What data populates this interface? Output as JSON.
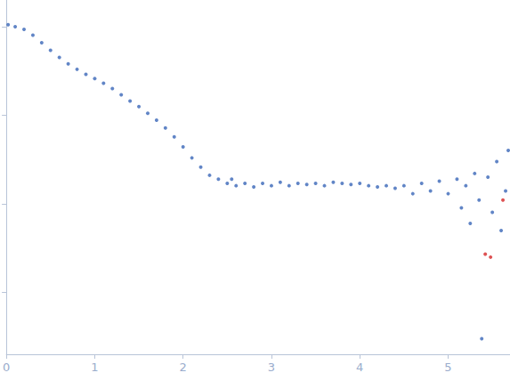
{
  "chart_data": {
    "type": "scatter",
    "log": "y",
    "grid": false,
    "tick_labels": "x",
    "marker": "circle",
    "xlim": [
      0,
      5.7
    ],
    "xticks": [
      0,
      1,
      2,
      3,
      4,
      5
    ],
    "ylim": [
      0.0002,
      2
    ],
    "yticks": [
      0.001,
      0.01,
      0.1,
      1
    ],
    "series": [
      {
        "color": "#3a66b8",
        "x": [
          0.02,
          0.1,
          0.2,
          0.3,
          0.4,
          0.5,
          0.6,
          0.7,
          0.8,
          0.9,
          1.0,
          1.1,
          1.2,
          1.3,
          1.4,
          1.5,
          1.6,
          1.7,
          1.8,
          1.9,
          2.0,
          2.1,
          2.2,
          2.3,
          2.4,
          2.5,
          2.55,
          2.6,
          2.7,
          2.8,
          2.9,
          3.0,
          3.1,
          3.2,
          3.3,
          3.4,
          3.5,
          3.6,
          3.7,
          3.8,
          3.9,
          4.0,
          4.1,
          4.2,
          4.3,
          4.4,
          4.5,
          4.6,
          4.7,
          4.8,
          4.9,
          5.0,
          5.1,
          5.15,
          5.2,
          5.25,
          5.3,
          5.35,
          5.38,
          5.45,
          5.5,
          5.55,
          5.6,
          5.65,
          5.68
        ],
        "values": [
          1.05,
          1.0,
          0.93,
          0.8,
          0.66,
          0.54,
          0.45,
          0.38,
          0.33,
          0.29,
          0.26,
          0.23,
          0.2,
          0.17,
          0.145,
          0.125,
          0.105,
          0.088,
          0.072,
          0.057,
          0.044,
          0.033,
          0.026,
          0.021,
          0.019,
          0.017,
          0.019,
          0.016,
          0.017,
          0.0155,
          0.017,
          0.016,
          0.0175,
          0.016,
          0.017,
          0.0165,
          0.017,
          0.016,
          0.0175,
          0.017,
          0.0165,
          0.017,
          0.016,
          0.0155,
          0.016,
          0.015,
          0.016,
          0.013,
          0.017,
          0.014,
          0.018,
          0.013,
          0.019,
          0.009,
          0.016,
          0.006,
          0.022,
          0.011,
          0.0003,
          0.02,
          0.008,
          0.03,
          0.005,
          0.014,
          0.04
        ]
      },
      {
        "color": "#d62728",
        "x": [
          5.42,
          5.48,
          5.62
        ],
        "values": [
          0.0027,
          0.0025,
          0.011
        ]
      }
    ]
  }
}
